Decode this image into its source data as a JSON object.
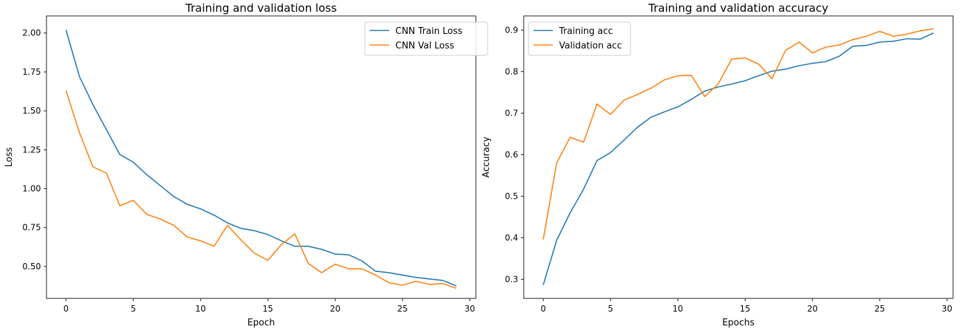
{
  "chart_data": [
    {
      "type": "line",
      "title": "Training and validation loss",
      "xlabel": "Epoch",
      "ylabel": "Loss",
      "xlim": [
        -1.45,
        30.45
      ],
      "ylim": [
        0.295,
        2.11
      ],
      "xticks": [
        0,
        5,
        10,
        15,
        20,
        25,
        30
      ],
      "yticks": [
        0.5,
        0.75,
        1.0,
        1.25,
        1.5,
        1.75,
        2.0
      ],
      "ytick_labels": [
        "0.50",
        "0.75",
        "1.00",
        "1.25",
        "1.50",
        "1.75",
        "2.00"
      ],
      "grid": false,
      "legend_position": "top-right",
      "x": [
        0,
        1,
        2,
        3,
        4,
        5,
        6,
        7,
        8,
        9,
        10,
        11,
        12,
        13,
        14,
        15,
        16,
        17,
        18,
        19,
        20,
        21,
        22,
        23,
        24,
        25,
        26,
        27,
        28,
        29
      ],
      "series": [
        {
          "name": "CNN Train Loss",
          "color": "#1f77b4",
          "values": [
            2.02,
            1.72,
            1.54,
            1.38,
            1.22,
            1.17,
            1.09,
            1.02,
            0.95,
            0.9,
            0.87,
            0.83,
            0.78,
            0.745,
            0.73,
            0.705,
            0.665,
            0.63,
            0.63,
            0.61,
            0.58,
            0.575,
            0.535,
            0.47,
            0.46,
            0.445,
            0.43,
            0.42,
            0.41,
            0.375
          ]
        },
        {
          "name": "CNN Val Loss",
          "color": "#ff7f0e",
          "values": [
            1.63,
            1.36,
            1.14,
            1.1,
            0.89,
            0.925,
            0.835,
            0.805,
            0.765,
            0.69,
            0.665,
            0.63,
            0.765,
            0.67,
            0.585,
            0.54,
            0.64,
            0.71,
            0.52,
            0.46,
            0.515,
            0.485,
            0.485,
            0.445,
            0.395,
            0.38,
            0.405,
            0.385,
            0.39,
            0.36
          ]
        }
      ]
    },
    {
      "type": "line",
      "title": "Training and validation accuracy",
      "xlabel": "Epochs",
      "ylabel": "Accuracy",
      "xlim": [
        -1.45,
        30.45
      ],
      "ylim": [
        0.254,
        0.934
      ],
      "xticks": [
        0,
        5,
        10,
        15,
        20,
        25,
        30
      ],
      "yticks": [
        0.3,
        0.4,
        0.5,
        0.6,
        0.7,
        0.8,
        0.9
      ],
      "ytick_labels": [
        "0.3",
        "0.4",
        "0.5",
        "0.6",
        "0.7",
        "0.8",
        "0.9"
      ],
      "grid": false,
      "legend_position": "top-left",
      "x": [
        0,
        1,
        2,
        3,
        4,
        5,
        6,
        7,
        8,
        9,
        10,
        11,
        12,
        13,
        14,
        15,
        16,
        17,
        18,
        19,
        20,
        21,
        22,
        23,
        24,
        25,
        26,
        27,
        28,
        29
      ],
      "series": [
        {
          "name": "Training acc",
          "color": "#1f77b4",
          "values": [
            0.286,
            0.394,
            0.46,
            0.517,
            0.586,
            0.605,
            0.635,
            0.666,
            0.69,
            0.703,
            0.715,
            0.733,
            0.753,
            0.763,
            0.77,
            0.778,
            0.79,
            0.801,
            0.806,
            0.814,
            0.82,
            0.824,
            0.837,
            0.861,
            0.863,
            0.871,
            0.873,
            0.879,
            0.878,
            0.893
          ]
        },
        {
          "name": "Validation acc",
          "color": "#ff7f0e",
          "values": [
            0.396,
            0.58,
            0.642,
            0.63,
            0.722,
            0.697,
            0.731,
            0.745,
            0.76,
            0.78,
            0.79,
            0.791,
            0.74,
            0.77,
            0.83,
            0.833,
            0.818,
            0.783,
            0.851,
            0.871,
            0.845,
            0.859,
            0.864,
            0.877,
            0.885,
            0.897,
            0.885,
            0.89,
            0.898,
            0.903
          ]
        }
      ]
    }
  ]
}
